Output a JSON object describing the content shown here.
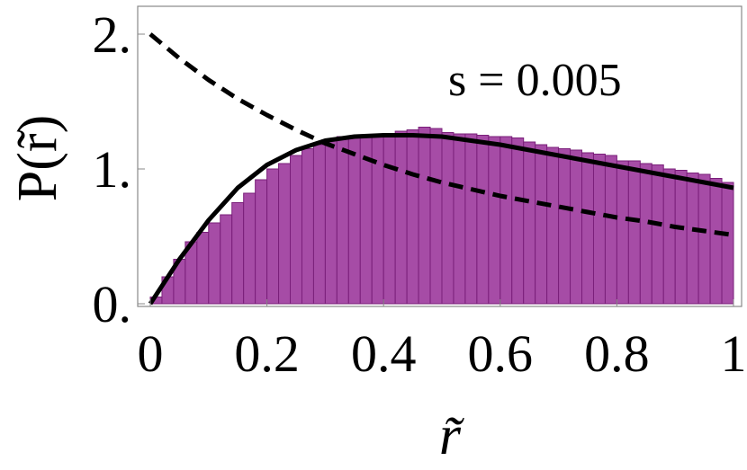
{
  "chart_data": {
    "type": "bar",
    "xlabel": "r̃",
    "ylabel": "P(r̃)",
    "annotation": "s = 0.005",
    "xlim": [
      0,
      1
    ],
    "ylim": [
      0,
      2.2
    ],
    "grid": false,
    "x_ticks": [
      {
        "value": 0,
        "label": "0"
      },
      {
        "value": 0.2,
        "label": "0.2"
      },
      {
        "value": 0.4,
        "label": "0.4"
      },
      {
        "value": 0.6,
        "label": "0.6"
      },
      {
        "value": 0.8,
        "label": "0.8"
      },
      {
        "value": 1,
        "label": "1"
      }
    ],
    "y_ticks": [
      {
        "value": 0,
        "label": "0."
      },
      {
        "value": 1,
        "label": "1."
      },
      {
        "value": 2,
        "label": "2."
      }
    ],
    "histogram": {
      "bin_width": 0.02,
      "bin_start": 0,
      "values": [
        0.05,
        0.2,
        0.33,
        0.46,
        0.53,
        0.6,
        0.66,
        0.75,
        0.82,
        0.92,
        1.0,
        1.04,
        1.1,
        1.15,
        1.18,
        1.22,
        1.24,
        1.24,
        1.25,
        1.25,
        1.26,
        1.28,
        1.29,
        1.31,
        1.3,
        1.27,
        1.26,
        1.26,
        1.25,
        1.24,
        1.24,
        1.23,
        1.2,
        1.18,
        1.16,
        1.15,
        1.14,
        1.12,
        1.11,
        1.1,
        1.06,
        1.06,
        1.04,
        1.03,
        1.0,
        0.99,
        0.97,
        0.96,
        0.93,
        0.9
      ],
      "fill": "#a64ca6",
      "stroke": "#7a1f7a"
    },
    "series": [
      {
        "style": "solid",
        "color": "#000000",
        "x": [
          0,
          0.05,
          0.1,
          0.15,
          0.2,
          0.25,
          0.3,
          0.35,
          0.4,
          0.45,
          0.5,
          0.55,
          0.6,
          0.65,
          0.7,
          0.75,
          0.8,
          0.85,
          0.9,
          0.95,
          1.0
        ],
        "y": [
          0,
          0.33,
          0.62,
          0.86,
          1.03,
          1.14,
          1.21,
          1.24,
          1.25,
          1.25,
          1.24,
          1.21,
          1.18,
          1.14,
          1.1,
          1.06,
          1.02,
          0.98,
          0.94,
          0.9,
          0.86
        ]
      },
      {
        "style": "dashed",
        "color": "#000000",
        "x": [
          0,
          0.05,
          0.1,
          0.15,
          0.2,
          0.25,
          0.3,
          0.35,
          0.4,
          0.45,
          0.5,
          0.55,
          0.6,
          0.65,
          0.7,
          0.75,
          0.8,
          0.85,
          0.9,
          0.95,
          1.0
        ],
        "y": [
          2.0,
          1.82,
          1.66,
          1.52,
          1.4,
          1.29,
          1.19,
          1.11,
          1.03,
          0.96,
          0.9,
          0.85,
          0.8,
          0.76,
          0.72,
          0.68,
          0.64,
          0.61,
          0.57,
          0.54,
          0.51
        ]
      }
    ]
  }
}
